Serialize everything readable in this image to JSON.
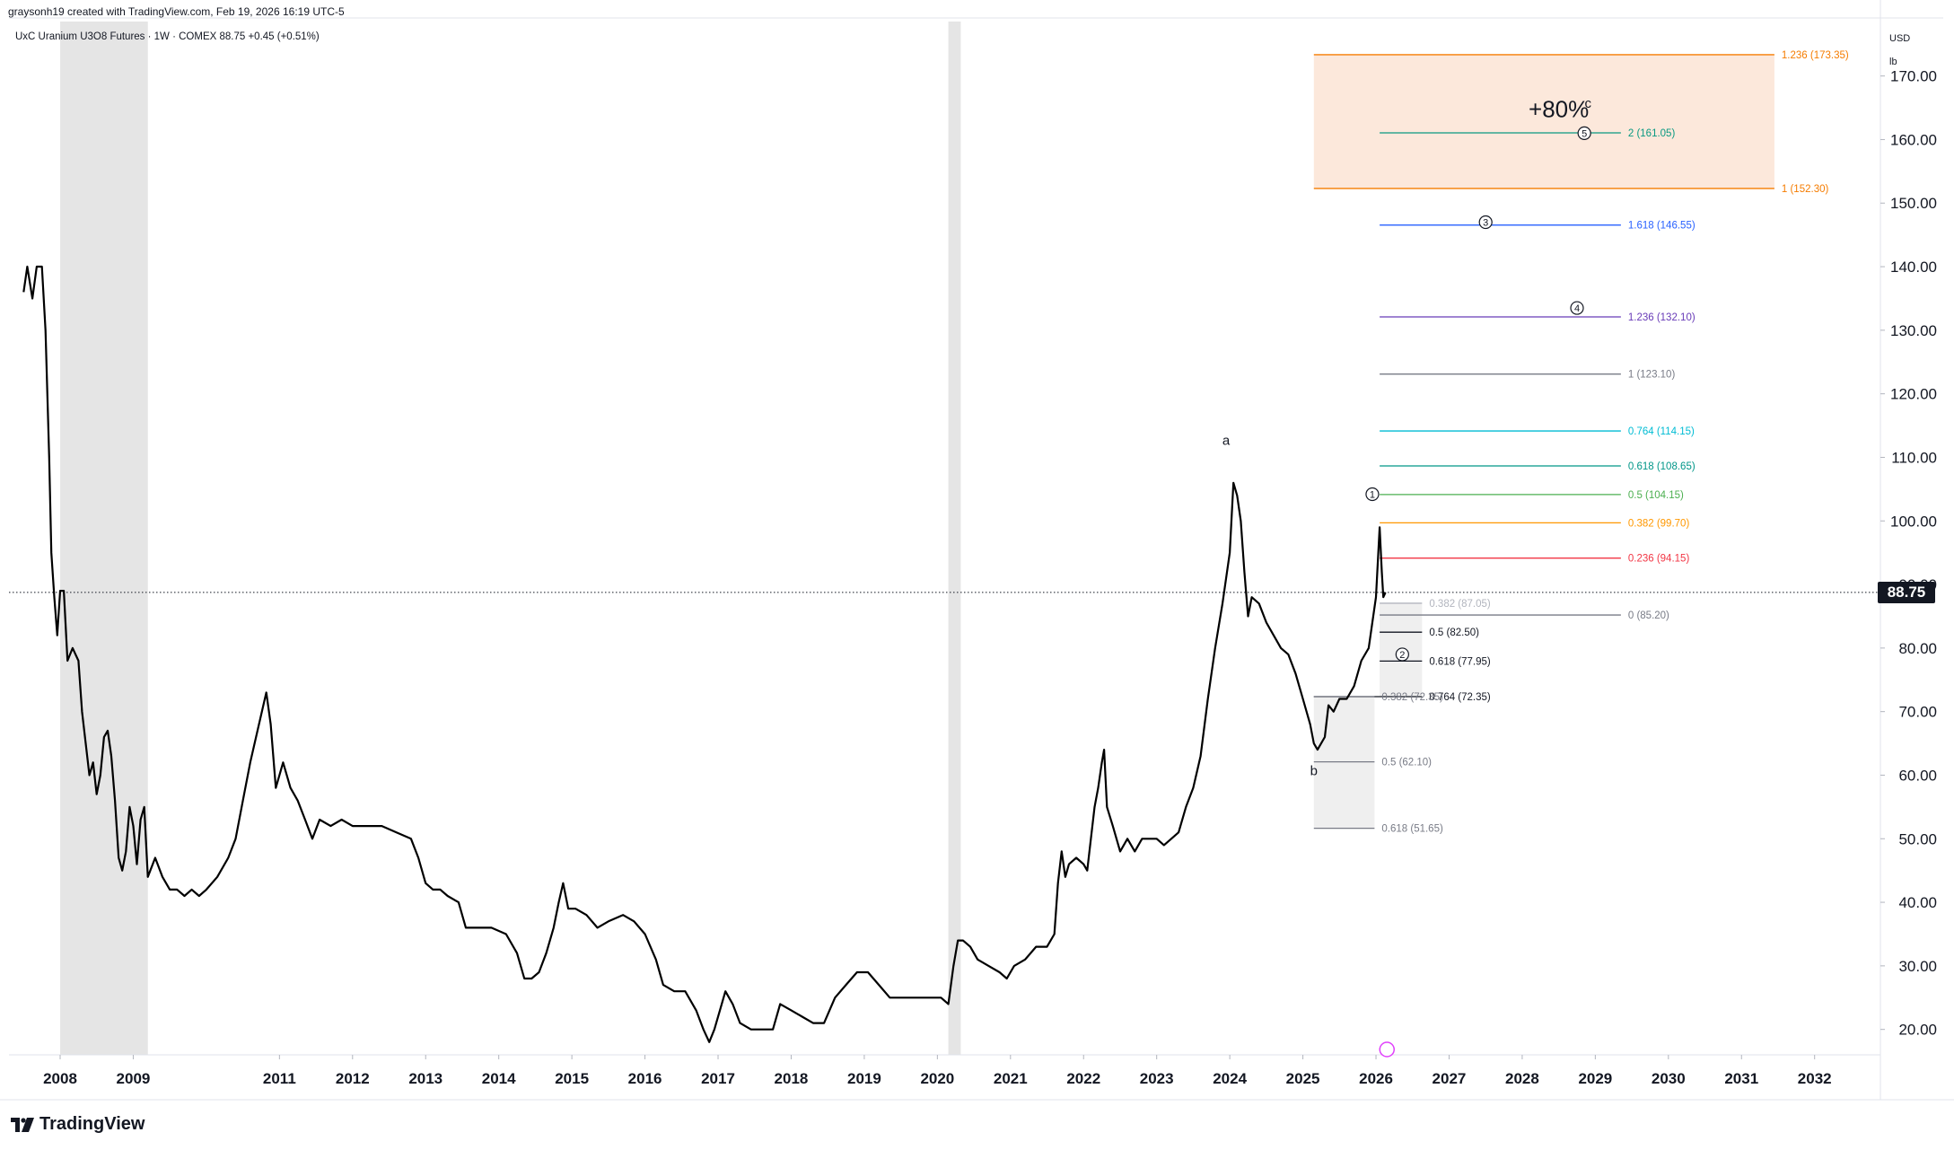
{
  "header": {
    "credit": "graysonh19 created with TradingView.com, Feb 19, 2026 16:19 UTC-5",
    "symbol": "UxC Uranium U3O8 Futures · 1W · COMEX  88.75  +0.45 (+0.51%)",
    "currency": "USD",
    "unit": "lb"
  },
  "brand": "TradingView",
  "chart_data": {
    "type": "line",
    "title": "UxC Uranium U3O8 Futures",
    "interval": "1W",
    "exchange": "COMEX",
    "last_price": 88.75,
    "last_price_label": "88.75",
    "change": "+0.45 (+0.51%)",
    "ylim": [
      16,
      178
    ],
    "xlim": [
      2007.3,
      2032.9
    ],
    "y_ticks": [
      20,
      30,
      40,
      50,
      60,
      70,
      80,
      90,
      100,
      110,
      120,
      130,
      140,
      150,
      160,
      170
    ],
    "y_tick_labels": [
      "20.00",
      "30.00",
      "40.00",
      "50.00",
      "60.00",
      "70.00",
      "80.00",
      "90.00",
      "100.00",
      "110.00",
      "120.00",
      "130.00",
      "140.00",
      "150.00",
      "160.00",
      "170.00"
    ],
    "x_ticks": [
      2008,
      2009,
      2011,
      2012,
      2013,
      2014,
      2015,
      2016,
      2017,
      2018,
      2019,
      2020,
      2021,
      2022,
      2023,
      2024,
      2025,
      2026,
      2027,
      2028,
      2029,
      2030,
      2031,
      2032
    ],
    "x_tick_labels": [
      "2008",
      "2009",
      "2011",
      "2012",
      "2013",
      "2014",
      "2015",
      "2016",
      "2017",
      "2018",
      "2019",
      "2020",
      "2021",
      "2022",
      "2023",
      "2024",
      "2025",
      "2026",
      "2027",
      "2028",
      "2029",
      "2030",
      "2031",
      "2032"
    ],
    "shaded_periods": [
      [
        2008.0,
        2009.2
      ],
      [
        2020.15,
        2020.32
      ]
    ],
    "series": [
      {
        "name": "Price",
        "points": [
          [
            2007.5,
            136
          ],
          [
            2007.55,
            140
          ],
          [
            2007.62,
            135
          ],
          [
            2007.68,
            140
          ],
          [
            2007.75,
            140
          ],
          [
            2007.8,
            130
          ],
          [
            2007.85,
            110
          ],
          [
            2007.88,
            95
          ],
          [
            2007.92,
            88
          ],
          [
            2007.96,
            82
          ],
          [
            2008.0,
            89
          ],
          [
            2008.05,
            89
          ],
          [
            2008.1,
            78
          ],
          [
            2008.17,
            80
          ],
          [
            2008.25,
            78
          ],
          [
            2008.3,
            70
          ],
          [
            2008.35,
            65
          ],
          [
            2008.4,
            60
          ],
          [
            2008.45,
            62
          ],
          [
            2008.5,
            57
          ],
          [
            2008.55,
            60
          ],
          [
            2008.6,
            66
          ],
          [
            2008.65,
            67
          ],
          [
            2008.7,
            63
          ],
          [
            2008.75,
            56
          ],
          [
            2008.8,
            47
          ],
          [
            2008.85,
            45
          ],
          [
            2008.9,
            48
          ],
          [
            2008.95,
            55
          ],
          [
            2009.0,
            52
          ],
          [
            2009.05,
            46
          ],
          [
            2009.1,
            53
          ],
          [
            2009.15,
            55
          ],
          [
            2009.2,
            44
          ],
          [
            2009.3,
            47
          ],
          [
            2009.4,
            44
          ],
          [
            2009.5,
            42
          ],
          [
            2009.6,
            42
          ],
          [
            2009.7,
            41
          ],
          [
            2009.8,
            42
          ],
          [
            2009.9,
            41
          ],
          [
            2010.0,
            42
          ],
          [
            2010.15,
            44
          ],
          [
            2010.3,
            47
          ],
          [
            2010.4,
            50
          ],
          [
            2010.5,
            56
          ],
          [
            2010.6,
            62
          ],
          [
            2010.7,
            67
          ],
          [
            2010.78,
            71
          ],
          [
            2010.82,
            73
          ],
          [
            2010.88,
            68
          ],
          [
            2010.95,
            58
          ],
          [
            2011.05,
            62
          ],
          [
            2011.15,
            58
          ],
          [
            2011.25,
            56
          ],
          [
            2011.35,
            53
          ],
          [
            2011.45,
            50
          ],
          [
            2011.55,
            53
          ],
          [
            2011.7,
            52
          ],
          [
            2011.85,
            53
          ],
          [
            2012.0,
            52
          ],
          [
            2012.2,
            52
          ],
          [
            2012.4,
            52
          ],
          [
            2012.6,
            51
          ],
          [
            2012.8,
            50
          ],
          [
            2012.9,
            47
          ],
          [
            2013.0,
            43
          ],
          [
            2013.1,
            42
          ],
          [
            2013.2,
            42
          ],
          [
            2013.3,
            41
          ],
          [
            2013.45,
            40
          ],
          [
            2013.55,
            36
          ],
          [
            2013.7,
            36
          ],
          [
            2013.9,
            36
          ],
          [
            2014.1,
            35
          ],
          [
            2014.25,
            32
          ],
          [
            2014.35,
            28
          ],
          [
            2014.45,
            28
          ],
          [
            2014.55,
            29
          ],
          [
            2014.65,
            32
          ],
          [
            2014.75,
            36
          ],
          [
            2014.82,
            40
          ],
          [
            2014.88,
            43
          ],
          [
            2014.95,
            39
          ],
          [
            2015.05,
            39
          ],
          [
            2015.2,
            38
          ],
          [
            2015.35,
            36
          ],
          [
            2015.5,
            37
          ],
          [
            2015.7,
            38
          ],
          [
            2015.85,
            37
          ],
          [
            2016.0,
            35
          ],
          [
            2016.15,
            31
          ],
          [
            2016.25,
            27
          ],
          [
            2016.4,
            26
          ],
          [
            2016.55,
            26
          ],
          [
            2016.7,
            23
          ],
          [
            2016.8,
            20
          ],
          [
            2016.88,
            18
          ],
          [
            2016.95,
            20
          ],
          [
            2017.05,
            24
          ],
          [
            2017.1,
            26
          ],
          [
            2017.2,
            24
          ],
          [
            2017.3,
            21
          ],
          [
            2017.45,
            20
          ],
          [
            2017.6,
            20
          ],
          [
            2017.75,
            20
          ],
          [
            2017.85,
            24
          ],
          [
            2018.0,
            23
          ],
          [
            2018.15,
            22
          ],
          [
            2018.3,
            21
          ],
          [
            2018.45,
            21
          ],
          [
            2018.6,
            25
          ],
          [
            2018.75,
            27
          ],
          [
            2018.9,
            29
          ],
          [
            2019.05,
            29
          ],
          [
            2019.2,
            27
          ],
          [
            2019.35,
            25
          ],
          [
            2019.5,
            25
          ],
          [
            2019.7,
            25
          ],
          [
            2019.9,
            25
          ],
          [
            2020.05,
            25
          ],
          [
            2020.15,
            24
          ],
          [
            2020.22,
            30
          ],
          [
            2020.28,
            34
          ],
          [
            2020.35,
            34
          ],
          [
            2020.45,
            33
          ],
          [
            2020.55,
            31
          ],
          [
            2020.7,
            30
          ],
          [
            2020.85,
            29
          ],
          [
            2020.95,
            28
          ],
          [
            2021.05,
            30
          ],
          [
            2021.2,
            31
          ],
          [
            2021.35,
            33
          ],
          [
            2021.5,
            33
          ],
          [
            2021.6,
            35
          ],
          [
            2021.65,
            43
          ],
          [
            2021.7,
            48
          ],
          [
            2021.75,
            44
          ],
          [
            2021.8,
            46
          ],
          [
            2021.9,
            47
          ],
          [
            2022.0,
            46
          ],
          [
            2022.05,
            45
          ],
          [
            2022.1,
            50
          ],
          [
            2022.15,
            55
          ],
          [
            2022.2,
            58
          ],
          [
            2022.25,
            62
          ],
          [
            2022.28,
            64
          ],
          [
            2022.32,
            55
          ],
          [
            2022.4,
            52
          ],
          [
            2022.5,
            48
          ],
          [
            2022.6,
            50
          ],
          [
            2022.7,
            48
          ],
          [
            2022.8,
            50
          ],
          [
            2022.9,
            50
          ],
          [
            2023.0,
            50
          ],
          [
            2023.1,
            49
          ],
          [
            2023.2,
            50
          ],
          [
            2023.3,
            51
          ],
          [
            2023.4,
            55
          ],
          [
            2023.5,
            58
          ],
          [
            2023.6,
            63
          ],
          [
            2023.7,
            72
          ],
          [
            2023.8,
            80
          ],
          [
            2023.9,
            87
          ],
          [
            2024.0,
            95
          ],
          [
            2024.05,
            106
          ],
          [
            2024.1,
            104
          ],
          [
            2024.15,
            100
          ],
          [
            2024.2,
            92
          ],
          [
            2024.25,
            85
          ],
          [
            2024.3,
            88
          ],
          [
            2024.4,
            87
          ],
          [
            2024.5,
            84
          ],
          [
            2024.6,
            82
          ],
          [
            2024.7,
            80
          ],
          [
            2024.8,
            79
          ],
          [
            2024.9,
            76
          ],
          [
            2025.0,
            72
          ],
          [
            2025.1,
            68
          ],
          [
            2025.15,
            65
          ],
          [
            2025.2,
            64
          ],
          [
            2025.3,
            66
          ],
          [
            2025.35,
            71
          ],
          [
            2025.42,
            70
          ],
          [
            2025.5,
            72
          ],
          [
            2025.6,
            72
          ],
          [
            2025.7,
            74
          ],
          [
            2025.8,
            78
          ],
          [
            2025.9,
            80
          ],
          [
            2026.0,
            88
          ],
          [
            2026.05,
            99
          ],
          [
            2026.08,
            92
          ],
          [
            2026.1,
            88
          ],
          [
            2026.13,
            88.75
          ]
        ]
      }
    ],
    "annotations": [
      {
        "text": "a",
        "x": 2023.95,
        "y": 112
      },
      {
        "text": "b",
        "x": 2025.15,
        "y": 60
      },
      {
        "text": "c",
        "x": 2028.9,
        "y": 165
      },
      {
        "text": "+80%",
        "x": 2028.5,
        "y": 163.5
      }
    ],
    "wave_labels": [
      {
        "text": "1",
        "x": 2025.95,
        "y": 104.2
      },
      {
        "text": "2",
        "x": 2026.36,
        "y": 79
      },
      {
        "text": "3",
        "x": 2027.5,
        "y": 147
      },
      {
        "text": "4",
        "x": 2028.75,
        "y": 133.5
      },
      {
        "text": "5",
        "x": 2028.85,
        "y": 161
      }
    ],
    "target_zone": {
      "label": "+80%",
      "from_price": 152.3,
      "to_price": 173.35,
      "x_start": 2025.15,
      "x_end": 2031.45
    },
    "fib_levels": [
      {
        "label": "1.236 (173.35)",
        "price": 173.35,
        "x_start": 2025.15,
        "x_end": 2031.45,
        "color": "#f57c00"
      },
      {
        "label": "2 (161.05)",
        "price": 161.05,
        "x_start": 2026.05,
        "x_end": 2029.35,
        "color": "#089981"
      },
      {
        "label": "1 (152.30)",
        "price": 152.3,
        "x_start": 2025.15,
        "x_end": 2031.45,
        "color": "#f57c00"
      },
      {
        "label": "1.618 (146.55)",
        "price": 146.55,
        "x_start": 2026.05,
        "x_end": 2029.35,
        "color": "#2962ff"
      },
      {
        "label": "1.236 (132.10)",
        "price": 132.1,
        "x_start": 2026.05,
        "x_end": 2029.35,
        "color": "#673ab7"
      },
      {
        "label": "1 (123.10)",
        "price": 123.1,
        "x_start": 2026.05,
        "x_end": 2029.35,
        "color": "#787b86"
      },
      {
        "label": "0.764 (114.15)",
        "price": 114.15,
        "x_start": 2026.05,
        "x_end": 2029.35,
        "color": "#00bcd4"
      },
      {
        "label": "0.618 (108.65)",
        "price": 108.65,
        "x_start": 2026.05,
        "x_end": 2029.35,
        "color": "#009688"
      },
      {
        "label": "0.5 (104.15)",
        "price": 104.15,
        "x_start": 2026.05,
        "x_end": 2029.35,
        "color": "#4caf50"
      },
      {
        "label": "0.382 (99.70)",
        "price": 99.7,
        "x_start": 2026.05,
        "x_end": 2029.35,
        "color": "#ff9800"
      },
      {
        "label": "0.236 (94.15)",
        "price": 94.15,
        "x_start": 2026.05,
        "x_end": 2029.35,
        "color": "#f23645"
      },
      {
        "label": "0 (85.20)",
        "price": 85.2,
        "x_start": 2026.05,
        "x_end": 2029.35,
        "color": "#787b86"
      },
      {
        "label": "0.382 (87.05)",
        "price": 87.05,
        "x_start": 2026.05,
        "x_end": 2026.63,
        "color": "#b2b5be"
      },
      {
        "label": "0.5 (82.50)",
        "price": 82.5,
        "x_start": 2026.05,
        "x_end": 2026.63,
        "color": "#131722"
      },
      {
        "label": "0.618 (77.95)",
        "price": 77.95,
        "x_start": 2026.05,
        "x_end": 2026.63,
        "color": "#131722"
      },
      {
        "label": "0.764 (72.35)",
        "price": 72.35,
        "x_start": 2025.15,
        "x_end": 2026.63,
        "color": "#131722"
      },
      {
        "label": "0.382 (72.35)",
        "price": 72.35,
        "x_start": 2025.15,
        "x_end": 2025.98,
        "color": "#787b86"
      },
      {
        "label": "0.5 (62.10)",
        "price": 62.1,
        "x_start": 2025.15,
        "x_end": 2025.98,
        "color": "#787b86"
      },
      {
        "label": "0.618 (51.65)",
        "price": 51.65,
        "x_start": 2025.15,
        "x_end": 2025.98,
        "color": "#787b86"
      }
    ],
    "shaded_retracements": [
      {
        "x_start": 2025.15,
        "x_end": 2025.98,
        "from_price": 51.65,
        "to_price": 72.35
      },
      {
        "x_start": 2026.05,
        "x_end": 2026.63,
        "from_price": 72.35,
        "to_price": 87.05
      }
    ]
  }
}
